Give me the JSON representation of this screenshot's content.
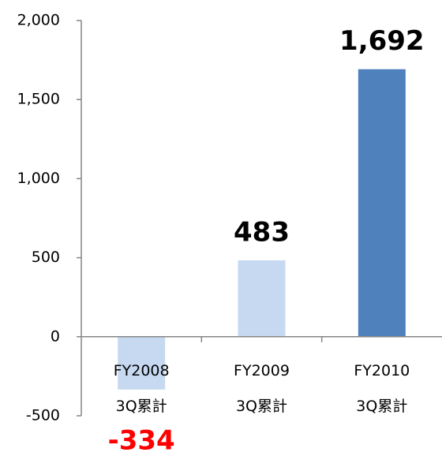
{
  "chart_data": {
    "type": "bar",
    "categories": [
      "FY2008\n3Q累計",
      "FY2009\n3Q累計",
      "FY2010\n3Q累計"
    ],
    "values": [
      -334,
      483,
      1692
    ],
    "value_labels": [
      "-334",
      "483",
      "1,692"
    ],
    "colors": [
      "#c6d9f1",
      "#c6d9f1",
      "#4f81bd"
    ],
    "negative_color": "#ff0000",
    "ylim": [
      -500,
      2000
    ],
    "yticks": [
      -500,
      0,
      500,
      {
        "value": 1000,
        "label": "1,000"
      },
      {
        "value": 1500,
        "label": "1,500"
      },
      {
        "value": 2000,
        "label": "2,000"
      }
    ],
    "grid": false
  }
}
